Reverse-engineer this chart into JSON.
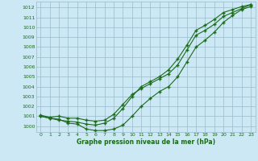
{
  "xlabel": "Graphe pression niveau de la mer (hPa)",
  "bg_color": "#cce8f4",
  "grid_color": "#99bbcc",
  "line_color": "#1a6b1a",
  "marker_color": "#1a6b1a",
  "ylim": [
    999.4,
    1012.6
  ],
  "xlim": [
    -0.5,
    23.5
  ],
  "yticks": [
    1000,
    1001,
    1002,
    1003,
    1004,
    1005,
    1006,
    1007,
    1008,
    1009,
    1010,
    1011,
    1012
  ],
  "xticks": [
    0,
    1,
    2,
    3,
    4,
    5,
    6,
    7,
    8,
    9,
    10,
    11,
    12,
    13,
    14,
    15,
    16,
    17,
    18,
    19,
    20,
    21,
    22,
    23
  ],
  "series1": [
    1001.0,
    1000.8,
    1000.7,
    1000.3,
    1000.2,
    999.7,
    999.55,
    999.55,
    999.7,
    1000.1,
    1001.0,
    1002.0,
    1002.8,
    1003.5,
    1004.0,
    1005.0,
    1006.5,
    1008.0,
    1008.7,
    1009.5,
    1010.5,
    1011.2,
    1011.8,
    1012.1
  ],
  "series2": [
    1001.1,
    1000.9,
    1001.0,
    1000.8,
    1000.8,
    1000.6,
    1000.5,
    1000.6,
    1001.2,
    1002.2,
    1003.2,
    1003.8,
    1004.3,
    1004.8,
    1005.3,
    1006.2,
    1007.7,
    1009.2,
    1009.7,
    1010.3,
    1011.1,
    1011.5,
    1011.9,
    1012.3
  ],
  "series3": [
    1001.0,
    1000.8,
    1000.6,
    1000.5,
    1000.4,
    1000.2,
    1000.1,
    1000.3,
    1000.8,
    1001.8,
    1003.0,
    1004.0,
    1004.5,
    1005.0,
    1005.7,
    1006.8,
    1008.2,
    1009.7,
    1010.2,
    1010.8,
    1011.5,
    1011.8,
    1012.1,
    1012.3
  ]
}
